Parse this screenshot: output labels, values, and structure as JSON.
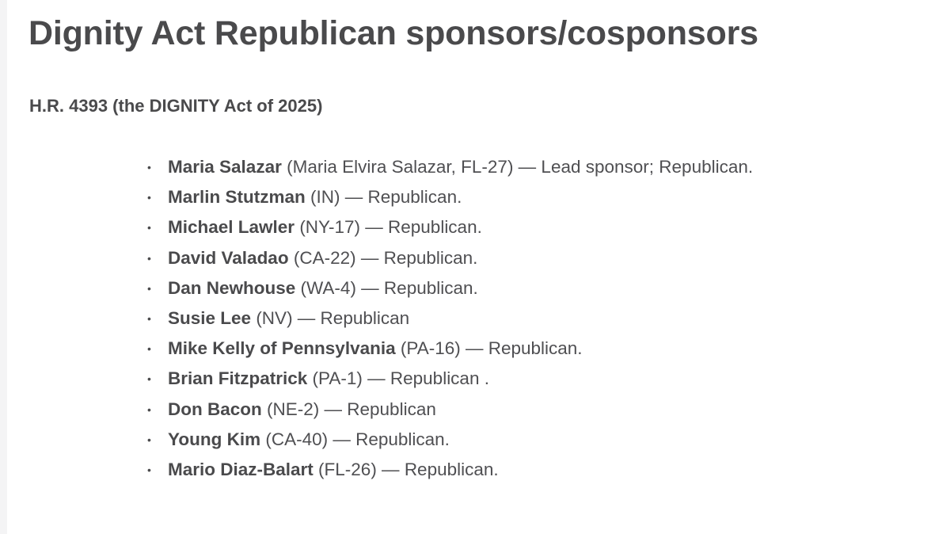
{
  "page": {
    "title": "Dignity Act Republican sponsors/cosponsors",
    "subtitle": "H.R. 4393 (the DIGNITY Act of 2025)"
  },
  "sponsors": [
    {
      "name": "Maria Salazar",
      "detail": " (Maria Elvira Salazar, FL-27) — Lead sponsor; Republican."
    },
    {
      "name": "Marlin Stutzman",
      "detail": " (IN) — Republican."
    },
    {
      "name": "Michael Lawler",
      "detail": " (NY-17) — Republican."
    },
    {
      "name": "David Valadao",
      "detail": " (CA-22) — Republican."
    },
    {
      "name": "Dan Newhouse",
      "detail": " (WA-4) — Republican."
    },
    {
      "name": "Susie Lee",
      "detail": " (NV) — Republican"
    },
    {
      "name": "Mike Kelly of Pennsylvania",
      "detail": " (PA-16) — Republican."
    },
    {
      "name": "Brian Fitzpatrick",
      "detail": " (PA-1) — Republican ."
    },
    {
      "name": "Don Bacon",
      "detail": " (NE-2) — Republican"
    },
    {
      "name": "Young Kim",
      "detail": " (CA-40) — Republican."
    },
    {
      "name": "Mario Diaz-Balart",
      "detail": " (FL-26) — Republican."
    }
  ],
  "icons": {
    "bullet": "bullet-dot-icon"
  }
}
